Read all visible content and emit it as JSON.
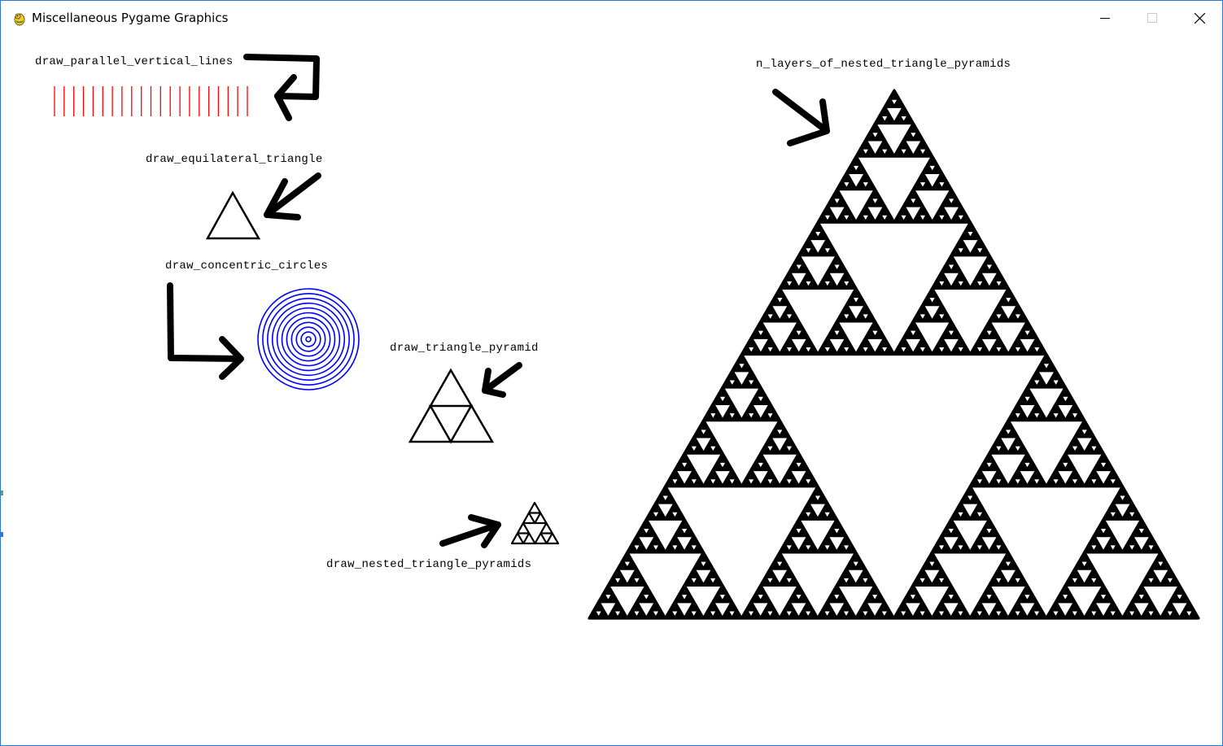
{
  "window": {
    "title": "Miscellaneous Pygame Graphics",
    "icon": "pygame-snake-icon",
    "controls": [
      "minimize-icon",
      "maximize-icon",
      "close-icon"
    ]
  },
  "labels": {
    "parallel_lines": "draw_parallel_vertical_lines",
    "equilateral_triangle": "draw_equilateral_triangle",
    "concentric_circles": "draw_concentric_circles",
    "triangle_pyramid": "draw_triangle_pyramid",
    "nested_triangle_pyramids": "draw_nested_triangle_pyramids",
    "n_layers": "n_layers_of_nested_triangle_pyramids"
  },
  "drawings": {
    "vertical_line_count": 21,
    "concentric_circle_count": 11,
    "nested_pyramid_depth": 2,
    "n_layers_depth": 7
  },
  "colors": {
    "lines": "#ff0000",
    "circles": "#0000ff",
    "triangles": "#000000",
    "window_border": "#2b79d4",
    "background": "#ffffff"
  }
}
